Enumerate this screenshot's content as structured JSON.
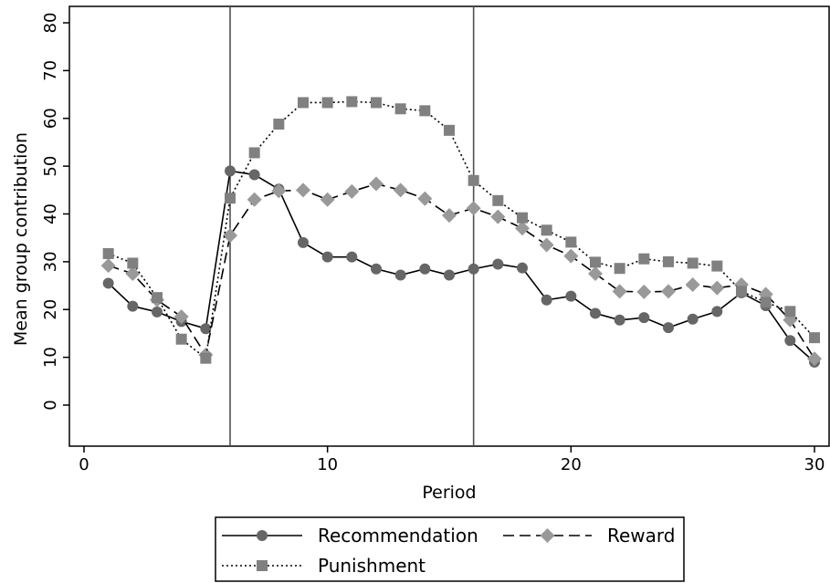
{
  "chart_data": {
    "type": "line",
    "xlabel": "Period",
    "ylabel": "Mean group contribution",
    "xlim": [
      0,
      30
    ],
    "ylim": [
      0,
      80
    ],
    "xticks": [
      0,
      10,
      20,
      30
    ],
    "yticks": [
      0,
      10,
      20,
      30,
      40,
      50,
      60,
      70,
      80
    ],
    "vlines": [
      6,
      16
    ],
    "grid": false,
    "legend_position": "bottom",
    "x": [
      1,
      2,
      3,
      4,
      5,
      6,
      7,
      8,
      9,
      10,
      11,
      12,
      13,
      14,
      15,
      16,
      17,
      18,
      19,
      20,
      21,
      22,
      23,
      24,
      25,
      26,
      27,
      28,
      29,
      30
    ],
    "series": [
      {
        "name": "Recommendation",
        "marker": "circle",
        "dash": "solid",
        "color": "#666666",
        "values": [
          25.5,
          20.7,
          19.5,
          17.5,
          16.0,
          49.0,
          48.2,
          45.2,
          34.0,
          31.0,
          31.0,
          28.5,
          27.2,
          28.5,
          27.2,
          28.5,
          29.5,
          28.7,
          22.0,
          22.8,
          19.2,
          17.8,
          18.3,
          16.2,
          18.0,
          19.6,
          23.5,
          20.8,
          13.5,
          9.0
        ]
      },
      {
        "name": "Reward",
        "marker": "diamond",
        "dash": "dashed",
        "color": "#999999",
        "values": [
          29.2,
          27.5,
          22.0,
          18.5,
          10.5,
          35.5,
          43.0,
          44.8,
          45.0,
          43.0,
          44.7,
          46.3,
          45.0,
          43.2,
          39.7,
          41.2,
          39.4,
          37.0,
          33.5,
          31.2,
          27.5,
          23.8,
          23.7,
          23.8,
          25.2,
          24.5,
          25.2,
          23.2,
          17.8,
          9.7
        ]
      },
      {
        "name": "Punishment",
        "marker": "square",
        "dash": "dotted",
        "color": "#808080",
        "values": [
          31.7,
          29.7,
          22.5,
          13.8,
          9.8,
          43.3,
          52.8,
          58.8,
          63.3,
          63.3,
          63.5,
          63.3,
          62.0,
          61.6,
          57.5,
          47.0,
          42.8,
          39.2,
          36.6,
          34.1,
          29.9,
          28.6,
          30.6,
          30.0,
          29.7,
          29.1,
          23.8,
          21.5,
          19.6,
          14.1
        ]
      }
    ]
  }
}
